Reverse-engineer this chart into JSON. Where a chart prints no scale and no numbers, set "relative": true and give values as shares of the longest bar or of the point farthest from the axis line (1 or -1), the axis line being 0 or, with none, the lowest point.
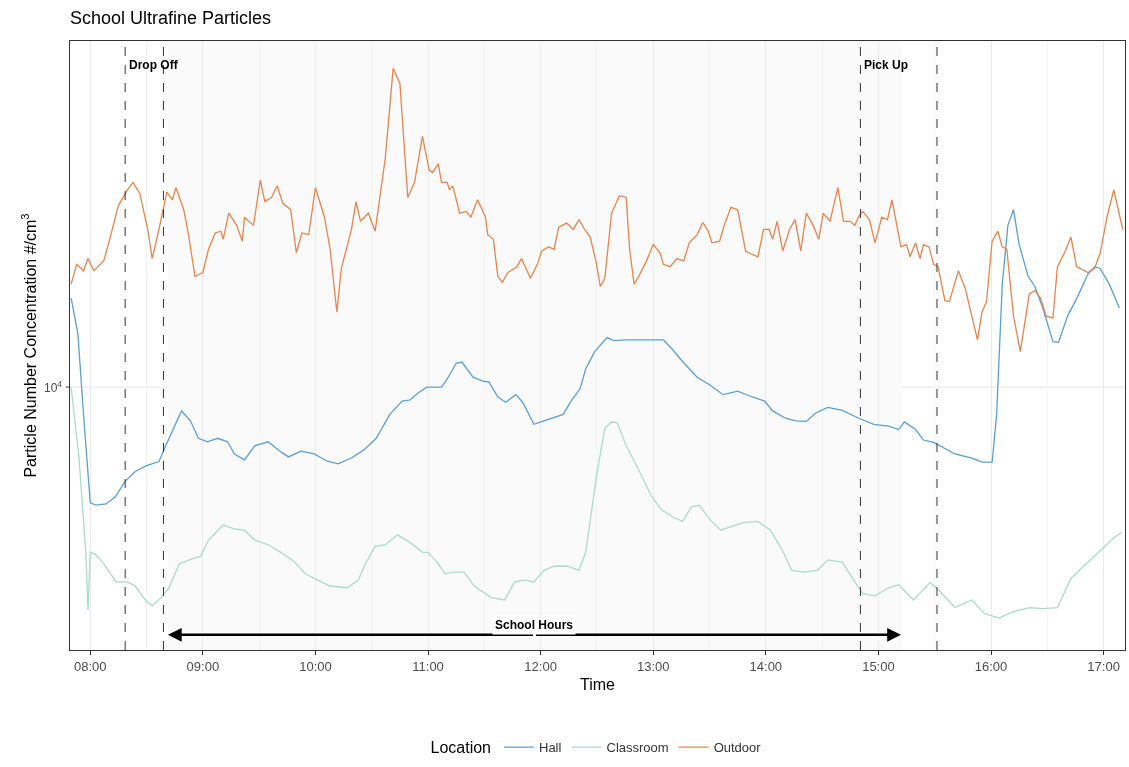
{
  "chart_data": {
    "type": "line",
    "title": "School Ultrafine Particles",
    "xlabel": "Time",
    "ylabel": "Particle Number Concentration #/cm$^{3}$",
    "legend_title": "Location",
    "relative": true,
    "xlim": [
      7.82,
      17.19
    ],
    "xticks": [
      {
        "value": 8,
        "label": "08:00"
      },
      {
        "value": 9,
        "label": "09:00"
      },
      {
        "value": 10,
        "label": "10:00"
      },
      {
        "value": 11,
        "label": "11:00"
      },
      {
        "value": 12,
        "label": "12:00"
      },
      {
        "value": 13,
        "label": "13:00"
      },
      {
        "value": 14,
        "label": "14:00"
      },
      {
        "value": 15,
        "label": "15:00"
      },
      {
        "value": 16,
        "label": "16:00"
      },
      {
        "value": 17,
        "label": "17:00"
      }
    ],
    "grid": "x",
    "legend": "bottom",
    "line_style": "solid",
    "marker": "none",
    "annotations": [
      "10$^{4}$"
    ],
    "ref_lines": [
      {
        "axis": "y",
        "value": 0.452,
        "color": "#ebebeb"
      },
      {
        "axis": "x",
        "value": 8.31,
        "label": "Drop Off",
        "line_style": "dashed"
      },
      {
        "axis": "x",
        "value": 8.65,
        "line_style": "dashed"
      },
      {
        "axis": "x",
        "value": 14.84,
        "label": "Pick Up",
        "line_style": "dashed"
      },
      {
        "axis": "x",
        "value": 15.52,
        "line_style": "dashed"
      }
    ],
    "bands": [
      {
        "axis": "x",
        "from": 8.69,
        "to": 15.2,
        "label": "School Hours",
        "color": "#fafafa"
      }
    ],
    "series": [
      {
        "name": "Hall",
        "color": "#5b9fd6",
        "x": [
          7.83,
          7.89,
          7.94,
          8.0,
          8.05,
          8.14,
          8.22,
          8.31,
          8.4,
          8.5,
          8.61,
          8.67,
          8.74,
          8.81,
          8.89,
          8.96,
          9.04,
          9.13,
          9.22,
          9.28,
          9.37,
          9.46,
          9.58,
          9.69,
          9.76,
          9.87,
          9.99,
          10.1,
          10.2,
          10.32,
          10.43,
          10.54,
          10.66,
          10.77,
          10.84,
          10.92,
          10.99,
          11.12,
          11.17,
          11.25,
          11.3,
          11.4,
          11.49,
          11.54,
          11.62,
          11.69,
          11.78,
          11.84,
          11.94,
          12.03,
          12.2,
          12.27,
          12.35,
          12.4,
          12.48,
          12.59,
          12.65,
          12.76,
          12.87,
          12.98,
          13.09,
          13.17,
          13.26,
          13.39,
          13.5,
          13.62,
          13.75,
          13.88,
          13.99,
          14.06,
          14.18,
          14.27,
          14.36,
          14.44,
          14.55,
          14.68,
          14.83,
          14.96,
          15.09,
          15.18,
          15.23,
          15.33,
          15.4,
          15.49,
          15.68,
          15.83,
          15.92,
          16.01,
          16.05,
          16.1,
          16.15,
          16.2,
          16.25,
          16.33,
          16.39,
          16.46,
          16.55,
          16.6,
          16.68,
          16.77,
          16.86,
          16.92,
          16.97,
          17.05,
          17.14
        ],
        "values": [
          0.605,
          0.544,
          0.405,
          0.253,
          0.249,
          0.251,
          0.263,
          0.29,
          0.307,
          0.317,
          0.324,
          0.351,
          0.381,
          0.411,
          0.394,
          0.364,
          0.358,
          0.364,
          0.358,
          0.337,
          0.327,
          0.351,
          0.358,
          0.341,
          0.332,
          0.342,
          0.337,
          0.325,
          0.32,
          0.33,
          0.344,
          0.364,
          0.405,
          0.428,
          0.43,
          0.443,
          0.452,
          0.452,
          0.466,
          0.493,
          0.495,
          0.469,
          0.462,
          0.461,
          0.435,
          0.426,
          0.439,
          0.426,
          0.388,
          0.394,
          0.405,
          0.428,
          0.449,
          0.483,
          0.513,
          0.537,
          0.532,
          0.533,
          0.533,
          0.533,
          0.533,
          0.517,
          0.496,
          0.469,
          0.456,
          0.439,
          0.445,
          0.435,
          0.428,
          0.411,
          0.398,
          0.394,
          0.393,
          0.407,
          0.417,
          0.412,
          0.398,
          0.388,
          0.385,
          0.379,
          0.392,
          0.379,
          0.361,
          0.357,
          0.337,
          0.33,
          0.323,
          0.323,
          0.405,
          0.629,
          0.73,
          0.757,
          0.697,
          0.642,
          0.625,
          0.588,
          0.53,
          0.529,
          0.574,
          0.608,
          0.646,
          0.659,
          0.656,
          0.629,
          0.588
        ]
      },
      {
        "name": "Classroom",
        "color": "#a9dcca",
        "x": [
          7.83,
          7.9,
          7.96,
          7.98,
          8.0,
          8.05,
          8.12,
          8.23,
          8.33,
          8.4,
          8.5,
          8.55,
          8.63,
          8.7,
          8.79,
          8.91,
          8.98,
          9.05,
          9.18,
          9.28,
          9.37,
          9.46,
          9.58,
          9.69,
          9.8,
          9.91,
          10.02,
          10.13,
          10.28,
          10.38,
          10.45,
          10.53,
          10.62,
          10.73,
          10.84,
          10.95,
          11.0,
          11.08,
          11.15,
          11.23,
          11.32,
          11.41,
          11.56,
          11.68,
          11.77,
          11.86,
          11.94,
          12.03,
          12.12,
          12.24,
          12.34,
          12.4,
          12.5,
          12.57,
          12.63,
          12.68,
          12.76,
          12.87,
          12.98,
          13.07,
          13.17,
          13.26,
          13.34,
          13.41,
          13.5,
          13.6,
          13.69,
          13.8,
          13.93,
          14.04,
          14.14,
          14.23,
          14.34,
          14.46,
          14.55,
          14.68,
          14.77,
          14.86,
          14.97,
          15.09,
          15.18,
          15.31,
          15.38,
          15.46,
          15.55,
          15.68,
          15.83,
          15.94,
          16.07,
          16.2,
          16.34,
          16.46,
          16.59,
          16.71,
          16.86,
          16.99,
          17.09,
          17.16
        ],
        "values": [
          0.452,
          0.33,
          0.168,
          0.069,
          0.168,
          0.164,
          0.148,
          0.117,
          0.117,
          0.11,
          0.083,
          0.076,
          0.09,
          0.107,
          0.148,
          0.157,
          0.161,
          0.189,
          0.215,
          0.208,
          0.206,
          0.189,
          0.181,
          0.168,
          0.154,
          0.131,
          0.12,
          0.11,
          0.107,
          0.12,
          0.151,
          0.178,
          0.181,
          0.198,
          0.185,
          0.168,
          0.168,
          0.151,
          0.131,
          0.134,
          0.134,
          0.11,
          0.09,
          0.086,
          0.117,
          0.12,
          0.117,
          0.137,
          0.144,
          0.144,
          0.137,
          0.168,
          0.304,
          0.381,
          0.392,
          0.391,
          0.351,
          0.31,
          0.266,
          0.242,
          0.229,
          0.221,
          0.246,
          0.249,
          0.225,
          0.206,
          0.212,
          0.219,
          0.221,
          0.206,
          0.174,
          0.137,
          0.134,
          0.137,
          0.155,
          0.151,
          0.123,
          0.097,
          0.093,
          0.107,
          0.112,
          0.086,
          0.1,
          0.116,
          0.1,
          0.073,
          0.086,
          0.063,
          0.055,
          0.066,
          0.073,
          0.071,
          0.073,
          0.123,
          0.151,
          0.174,
          0.193,
          0.202
        ]
      },
      {
        "name": "Outdoor",
        "color": "#e8844c",
        "x": [
          7.83,
          7.88,
          7.94,
          7.98,
          8.03,
          8.12,
          8.16,
          8.25,
          8.33,
          8.38,
          8.44,
          8.51,
          8.55,
          8.61,
          8.68,
          8.73,
          8.76,
          8.83,
          8.87,
          8.93,
          9.0,
          9.05,
          9.11,
          9.16,
          9.18,
          9.23,
          9.3,
          9.35,
          9.37,
          9.45,
          9.51,
          9.55,
          9.61,
          9.66,
          9.71,
          9.78,
          9.83,
          9.88,
          9.94,
          10.0,
          10.08,
          10.13,
          10.19,
          10.23,
          10.32,
          10.36,
          10.4,
          10.47,
          10.53,
          10.62,
          10.69,
          10.75,
          10.82,
          10.88,
          10.95,
          11.01,
          11.04,
          11.09,
          11.12,
          11.17,
          11.19,
          11.22,
          11.28,
          11.34,
          11.38,
          11.44,
          11.51,
          11.53,
          11.58,
          11.62,
          11.66,
          11.71,
          11.79,
          11.83,
          11.87,
          11.91,
          11.97,
          12.01,
          12.07,
          12.12,
          12.16,
          12.23,
          12.29,
          12.34,
          12.39,
          12.44,
          12.49,
          12.53,
          12.57,
          12.63,
          12.7,
          12.76,
          12.79,
          12.83,
          12.87,
          12.94,
          13.0,
          13.06,
          13.09,
          13.15,
          13.21,
          13.27,
          13.32,
          13.39,
          13.44,
          13.49,
          13.52,
          13.59,
          13.63,
          13.69,
          13.75,
          13.82,
          13.88,
          13.93,
          13.98,
          14.03,
          14.06,
          14.1,
          14.15,
          14.19,
          14.21,
          14.26,
          14.31,
          14.36,
          14.42,
          14.47,
          14.51,
          14.57,
          14.64,
          14.69,
          14.75,
          14.79,
          14.83,
          14.86,
          14.92,
          14.97,
          15.03,
          15.08,
          15.12,
          15.2,
          15.25,
          15.28,
          15.33,
          15.37,
          15.4,
          15.45,
          15.49,
          15.53,
          15.59,
          15.63,
          15.71,
          15.77,
          15.88,
          15.92,
          15.96,
          16.01,
          16.06,
          16.1,
          16.14,
          16.2,
          16.26,
          16.34,
          16.39,
          16.44,
          16.49,
          16.55,
          16.59,
          16.66,
          16.71,
          16.76,
          16.86,
          16.92,
          16.97,
          17.03,
          17.09,
          17.13,
          17.17
        ],
        "values": [
          0.629,
          0.663,
          0.652,
          0.673,
          0.652,
          0.669,
          0.697,
          0.764,
          0.791,
          0.804,
          0.785,
          0.723,
          0.673,
          0.723,
          0.787,
          0.774,
          0.795,
          0.757,
          0.717,
          0.642,
          0.649,
          0.689,
          0.717,
          0.72,
          0.706,
          0.751,
          0.73,
          0.703,
          0.744,
          0.73,
          0.808,
          0.771,
          0.778,
          0.798,
          0.768,
          0.757,
          0.683,
          0.717,
          0.714,
          0.795,
          0.744,
          0.689,
          0.581,
          0.656,
          0.723,
          0.771,
          0.737,
          0.751,
          0.72,
          0.845,
          1.0,
          0.974,
          0.778,
          0.804,
          0.883,
          0.825,
          0.821,
          0.836,
          0.804,
          0.804,
          0.791,
          0.798,
          0.751,
          0.754,
          0.744,
          0.774,
          0.744,
          0.714,
          0.706,
          0.642,
          0.632,
          0.649,
          0.659,
          0.673,
          0.656,
          0.639,
          0.663,
          0.686,
          0.693,
          0.689,
          0.727,
          0.734,
          0.723,
          0.74,
          0.723,
          0.71,
          0.669,
          0.625,
          0.639,
          0.751,
          0.781,
          0.778,
          0.689,
          0.629,
          0.642,
          0.669,
          0.697,
          0.683,
          0.663,
          0.659,
          0.673,
          0.669,
          0.7,
          0.714,
          0.735,
          0.72,
          0.7,
          0.703,
          0.73,
          0.761,
          0.757,
          0.686,
          0.68,
          0.676,
          0.723,
          0.723,
          0.706,
          0.737,
          0.686,
          0.71,
          0.723,
          0.74,
          0.686,
          0.751,
          0.73,
          0.706,
          0.751,
          0.737,
          0.795,
          0.737,
          0.737,
          0.73,
          0.747,
          0.754,
          0.74,
          0.7,
          0.744,
          0.74,
          0.774,
          0.693,
          0.697,
          0.676,
          0.7,
          0.673,
          0.697,
          0.693,
          0.663,
          0.659,
          0.601,
          0.599,
          0.652,
          0.622,
          0.533,
          0.581,
          0.599,
          0.703,
          0.72,
          0.693,
          0.689,
          0.574,
          0.513,
          0.612,
          0.618,
          0.605,
          0.574,
          0.571,
          0.659,
          0.686,
          0.71,
          0.659,
          0.649,
          0.656,
          0.683,
          0.744,
          0.791,
          0.757,
          0.723
        ]
      }
    ]
  }
}
